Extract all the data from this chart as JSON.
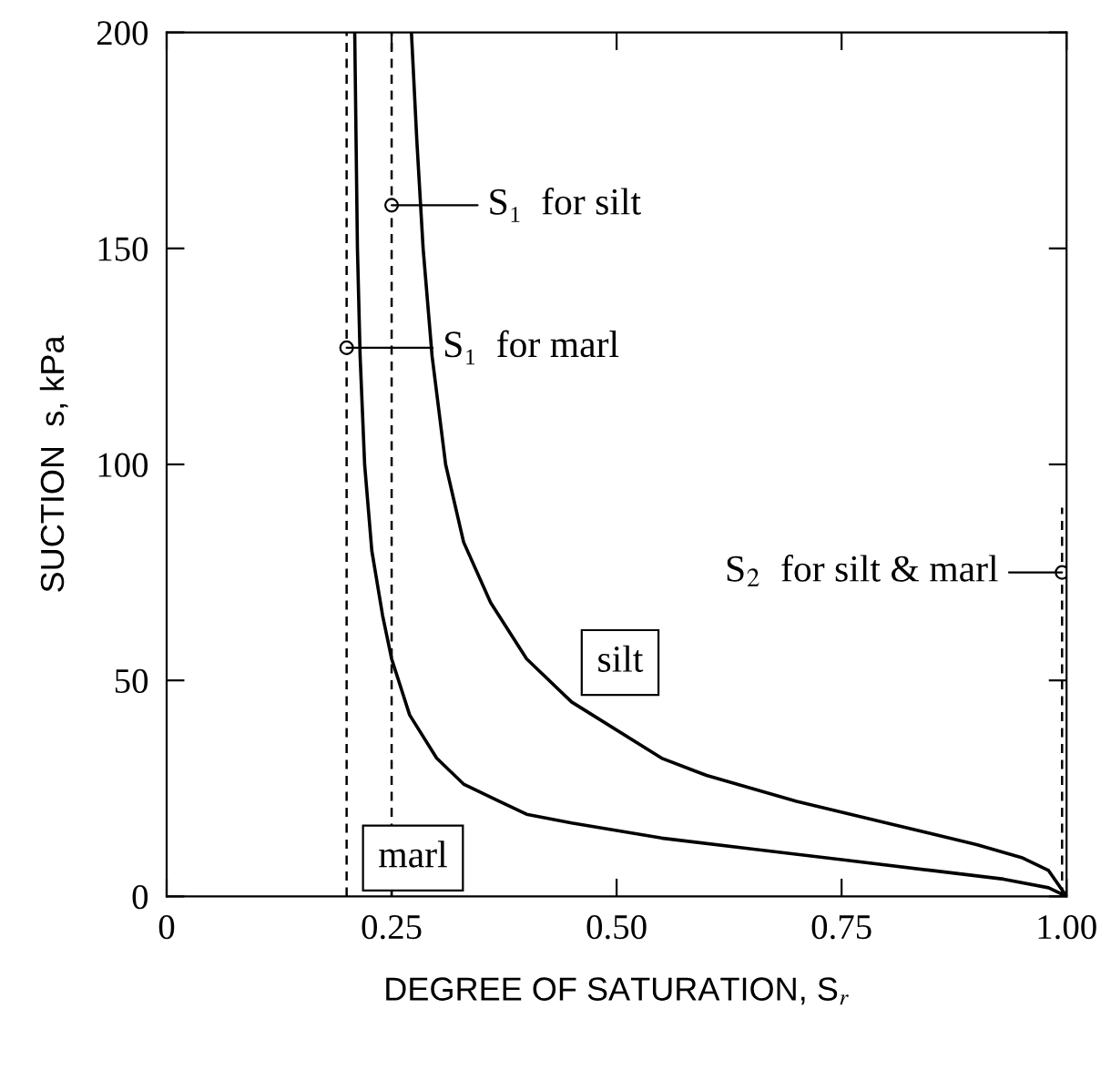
{
  "chart_data": {
    "type": "line",
    "xlabel": "DEGREE OF SATURATION, S$_{r}$",
    "ylabel": "SUCTION  s, kPa",
    "xlim": [
      0,
      1
    ],
    "ylim": [
      0,
      200
    ],
    "xticks": [
      0,
      {
        "value": 0.25,
        "label": "0.25"
      },
      {
        "value": 0.5,
        "label": "0.50"
      },
      {
        "value": 0.75,
        "label": "0.75"
      },
      {
        "value": 1,
        "label": "1.00"
      }
    ],
    "yticks": [
      0,
      50,
      100,
      150,
      200
    ],
    "grid": false,
    "legend": false,
    "marker": "none",
    "line_style": "solid",
    "series": [
      {
        "name": "silt",
        "color": "#000000",
        "x": [
          0.272,
          0.278,
          0.285,
          0.295,
          0.31,
          0.33,
          0.36,
          0.4,
          0.45,
          0.55,
          0.6,
          0.7,
          0.8,
          0.9,
          0.95,
          0.98,
          1.0
        ],
        "values": [
          200,
          175,
          150,
          125,
          100,
          82,
          68,
          55,
          45,
          32,
          28,
          22,
          17,
          12,
          9,
          6,
          0
        ]
      },
      {
        "name": "marl",
        "color": "#000000",
        "x": [
          0.209,
          0.212,
          0.215,
          0.22,
          0.228,
          0.24,
          0.25,
          0.27,
          0.3,
          0.33,
          0.37,
          0.4,
          0.45,
          0.55,
          0.65,
          0.75,
          0.85,
          0.93,
          0.98,
          1.0
        ],
        "values": [
          200,
          150,
          125,
          100,
          80,
          65,
          55,
          42,
          32,
          26,
          22,
          19,
          17,
          13.5,
          11,
          8.5,
          6,
          4,
          2,
          0
        ]
      },
      {
        "color": "#000000",
        "line_style": "dashed",
        "x": [
          0.995,
          0.995
        ],
        "values": [
          0,
          90
        ]
      }
    ],
    "ref_lines": [
      {
        "axis": "x",
        "value": 0.2,
        "line_style": "dashed",
        "color": "#000000"
      },
      {
        "axis": "x",
        "value": 0.25,
        "line_style": "dashed",
        "color": "#000000"
      }
    ],
    "annotations": [
      {
        "text": "S₁  for silt",
        "x": 0.25,
        "y": 160
      },
      {
        "text": "S₁  for marl",
        "x": 0.2,
        "y": 127
      },
      {
        "text": "S$_{2}$  for silt & marl",
        "x": 0.995,
        "y": 75
      }
    ]
  }
}
